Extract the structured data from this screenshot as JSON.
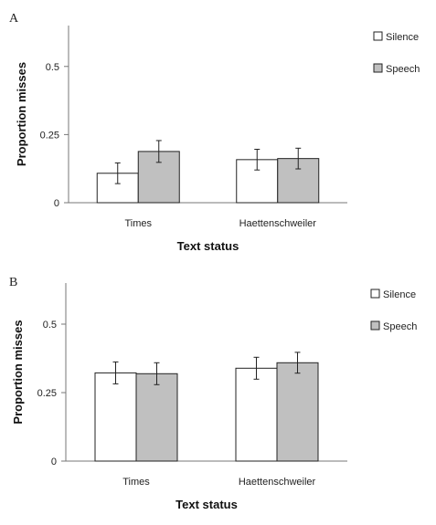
{
  "chart_data": [
    {
      "panel": "A",
      "type": "bar",
      "xlabel": "Text status",
      "ylabel": "Proportion misses",
      "ylim": [
        0,
        0.65
      ],
      "yticks": [
        {
          "v": 0,
          "label": "0"
        },
        {
          "v": 0.25,
          "label": "0.25"
        },
        {
          "v": 0.5,
          "label": "0.5"
        }
      ],
      "categories": [
        "Times",
        "Haettenschweiler"
      ],
      "series": [
        {
          "name": "Silence",
          "color": "#ffffff",
          "values": [
            0.108,
            0.158
          ],
          "errors": [
            0.038,
            0.038
          ]
        },
        {
          "name": "Speech",
          "color": "#c0c0c0",
          "values": [
            0.188,
            0.162
          ],
          "errors": [
            0.04,
            0.038
          ]
        }
      ],
      "legend": "top-right",
      "grid": false
    },
    {
      "panel": "B",
      "type": "bar",
      "xlabel": "Text status",
      "ylabel": "Proportion misses",
      "ylim": [
        0,
        0.65
      ],
      "yticks": [
        {
          "v": 0,
          "label": "0"
        },
        {
          "v": 0.25,
          "label": "0.25"
        },
        {
          "v": 0.5,
          "label": "0.5"
        }
      ],
      "categories": [
        "Times",
        "Haettenschweiler"
      ],
      "series": [
        {
          "name": "Silence",
          "color": "#ffffff",
          "values": [
            0.322,
            0.339
          ],
          "errors": [
            0.04,
            0.04
          ]
        },
        {
          "name": "Speech",
          "color": "#c0c0c0",
          "values": [
            0.319,
            0.359
          ],
          "errors": [
            0.04,
            0.038
          ]
        }
      ],
      "legend": "top-right",
      "grid": false
    }
  ]
}
